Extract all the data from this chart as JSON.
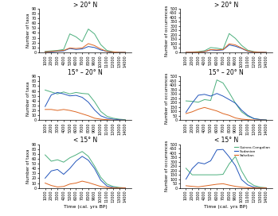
{
  "time_points": [
    1000,
    2000,
    3000,
    4000,
    5000,
    6000,
    7000,
    8000,
    9000,
    10000,
    11000,
    12000,
    13000,
    14000
  ],
  "colors": {
    "guineo": "#4CAF7D",
    "sudanian": "#2255BB",
    "sahelian": "#DD6622"
  },
  "legend_labels": [
    "Guineo-Congolian",
    "Sudanian",
    "Sahelian"
  ],
  "titles": [
    "> 20° N",
    "15° – 20° N",
    "< 15° N"
  ],
  "ylabel_left": "Number of taxa",
  "ylabel_right": "Number of occurrences",
  "xlabel": "Time (cal. yrs BP)",
  "taxa": {
    "gt20": {
      "guineo": [
        2,
        3,
        4,
        6,
        38,
        32,
        22,
        48,
        38,
        16,
        4,
        1,
        0,
        0
      ],
      "sudanian": [
        1,
        1,
        2,
        3,
        8,
        6,
        7,
        12,
        10,
        5,
        2,
        0,
        0,
        0
      ],
      "sahelian": [
        1,
        2,
        3,
        4,
        9,
        8,
        9,
        18,
        14,
        7,
        2,
        1,
        0,
        0
      ]
    },
    "mid": {
      "guineo": [
        62,
        58,
        54,
        58,
        54,
        57,
        55,
        54,
        38,
        18,
        8,
        4,
        2,
        1
      ],
      "sudanian": [
        28,
        52,
        57,
        54,
        50,
        51,
        47,
        37,
        21,
        9,
        4,
        2,
        1,
        0
      ],
      "sahelian": [
        22,
        22,
        20,
        22,
        20,
        17,
        13,
        9,
        4,
        2,
        1,
        0,
        0,
        0
      ]
    },
    "lt15": {
      "guineo": [
        68,
        55,
        58,
        53,
        62,
        68,
        75,
        65,
        45,
        22,
        8,
        3,
        1,
        0
      ],
      "sudanian": [
        20,
        35,
        38,
        28,
        40,
        55,
        65,
        57,
        40,
        16,
        4,
        1,
        0,
        0
      ],
      "sahelian": [
        10,
        5,
        2,
        3,
        8,
        10,
        14,
        11,
        7,
        3,
        1,
        0,
        0,
        0
      ]
    }
  },
  "occurrences": {
    "gt20": {
      "guineo": [
        2,
        4,
        8,
        18,
        55,
        48,
        35,
        215,
        160,
        80,
        25,
        8,
        2,
        0
      ],
      "sudanian": [
        1,
        2,
        4,
        8,
        28,
        22,
        28,
        85,
        70,
        45,
        12,
        4,
        1,
        0
      ],
      "sahelian": [
        1,
        2,
        4,
        8,
        32,
        28,
        32,
        98,
        85,
        50,
        16,
        4,
        1,
        0
      ]
    },
    "mid": {
      "guineo": [
        220,
        215,
        205,
        235,
        225,
        460,
        425,
        315,
        195,
        95,
        45,
        18,
        8,
        3
      ],
      "sudanian": [
        90,
        195,
        285,
        295,
        275,
        305,
        275,
        235,
        195,
        115,
        55,
        18,
        6,
        2
      ],
      "sahelian": [
        75,
        95,
        125,
        145,
        125,
        105,
        75,
        55,
        25,
        12,
        6,
        2,
        1,
        0
      ]
    },
    "lt15": {
      "guineo": [
        225,
        150,
        150,
        150,
        150,
        150,
        155,
        275,
        360,
        195,
        75,
        28,
        8,
        2
      ],
      "sudanian": [
        100,
        220,
        290,
        275,
        310,
        435,
        440,
        355,
        255,
        95,
        35,
        8,
        2,
        0
      ],
      "sahelian": [
        25,
        18,
        12,
        22,
        32,
        42,
        48,
        32,
        18,
        8,
        3,
        1,
        0,
        0
      ]
    }
  },
  "ylim_taxa": [
    0,
    90
  ],
  "ylim_occ": [
    0,
    500
  ],
  "yticks_taxa": [
    0,
    10,
    20,
    30,
    40,
    50,
    60,
    70,
    80,
    90
  ],
  "yticks_occ": [
    0,
    50,
    100,
    150,
    200,
    250,
    300,
    350,
    400,
    450,
    500
  ],
  "xlim": [
    0,
    15000
  ],
  "xticks": [
    1000,
    2000,
    3000,
    4000,
    5000,
    6000,
    7000,
    8000,
    9000,
    10000,
    11000,
    12000,
    13000,
    14000
  ]
}
